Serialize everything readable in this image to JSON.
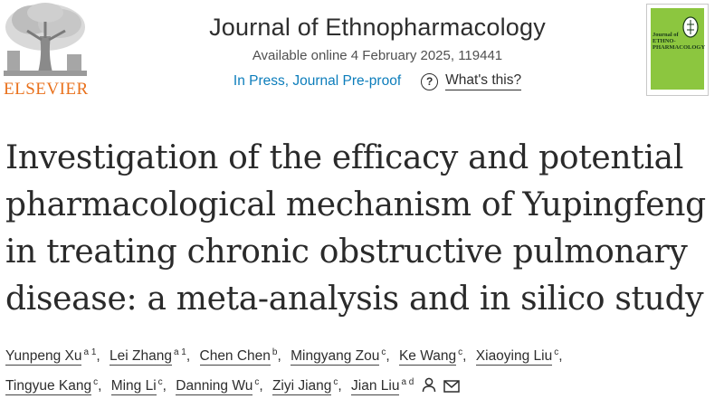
{
  "publisher": {
    "name": "ELSEVIER"
  },
  "journal": {
    "name": "Journal of Ethnopharmacology",
    "availability": "Available online 4 February 2025, 119441",
    "status_link": "In Press, Journal Pre-proof",
    "whats_this": "What's this?",
    "cover_title": "Journal of\nETHNO-\nPHARMACOLOGY"
  },
  "article": {
    "title_lines": [
      "Investigation of the efficacy and potential",
      "pharmacological mechanism of Yupingfeng",
      "in treating chronic obstructive pulmonary",
      "disease: a meta-analysis and in silico study"
    ]
  },
  "authors": [
    {
      "name": "Yunpeng Xu",
      "aff": "a 1"
    },
    {
      "name": "Lei Zhang",
      "aff": "a 1"
    },
    {
      "name": "Chen Chen",
      "aff": "b"
    },
    {
      "name": "Mingyang Zou",
      "aff": "c"
    },
    {
      "name": "Ke Wang",
      "aff": "c"
    },
    {
      "name": "Xiaoying Liu",
      "aff": "c"
    },
    {
      "name": "Tingyue Kang",
      "aff": "c"
    },
    {
      "name": "Ming Li",
      "aff": "c"
    },
    {
      "name": "Danning Wu",
      "aff": "c"
    },
    {
      "name": "Ziyi Jiang",
      "aff": "c"
    },
    {
      "name": "Jian Liu",
      "aff": "a d"
    }
  ],
  "icons": {
    "help": "question-circle-icon",
    "person": "person-icon",
    "email": "envelope-icon"
  },
  "colors": {
    "publisher_orange": "#e9711c",
    "link_blue": "#0c7dbb",
    "cover_green": "#8cc63f"
  }
}
